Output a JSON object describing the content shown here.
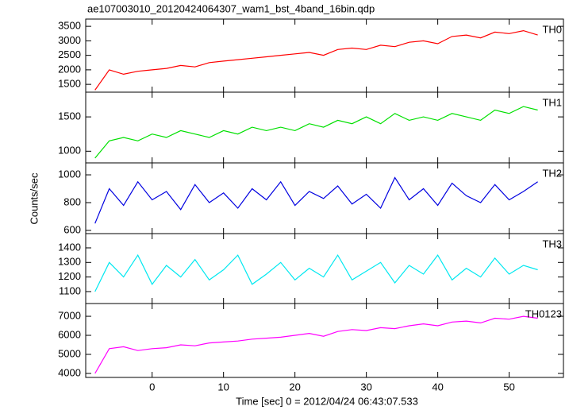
{
  "title": "ae107003010_20120424064307_wam1_bst_4band_16bin.qdp",
  "xlabel": "Time [sec] 0 = 2012/04/24 06:43:07.533",
  "ylabel": "Counts/sec",
  "xlim": [
    -9.3,
    57.6
  ],
  "xticks": [
    0,
    10,
    20,
    30,
    40,
    50
  ],
  "chart_data": [
    {
      "type": "line",
      "x": [
        -8,
        -6,
        -4,
        -2,
        0,
        2,
        4,
        6,
        8,
        10,
        12,
        14,
        16,
        18,
        20,
        22,
        24,
        26,
        28,
        30,
        32,
        34,
        36,
        38,
        40,
        42,
        44,
        46,
        48,
        50,
        52,
        54
      ],
      "series": [
        {
          "name": "TH0",
          "color": "#ff0000",
          "values": [
            1300,
            2000,
            1850,
            1950,
            2000,
            2050,
            2150,
            2100,
            2250,
            2300,
            2350,
            2400,
            2450,
            2500,
            2550,
            2600,
            2500,
            2700,
            2750,
            2700,
            2850,
            2800,
            2950,
            3000,
            2900,
            3150,
            3200,
            3100,
            3300,
            3250,
            3350,
            3200
          ]
        }
      ],
      "ylim": [
        1230,
        3750
      ],
      "yticks": [
        1500,
        2000,
        2500,
        3000,
        3500
      ]
    },
    {
      "type": "line",
      "x": [
        -8,
        -6,
        -4,
        -2,
        0,
        2,
        4,
        6,
        8,
        10,
        12,
        14,
        16,
        18,
        20,
        22,
        24,
        26,
        28,
        30,
        32,
        34,
        36,
        38,
        40,
        42,
        44,
        46,
        48,
        50,
        52,
        54
      ],
      "series": [
        {
          "name": "TH1",
          "color": "#00e000",
          "values": [
            900,
            1150,
            1200,
            1150,
            1250,
            1200,
            1300,
            1250,
            1200,
            1300,
            1250,
            1350,
            1300,
            1350,
            1300,
            1400,
            1350,
            1450,
            1400,
            1500,
            1400,
            1550,
            1450,
            1500,
            1450,
            1550,
            1500,
            1450,
            1600,
            1550,
            1650,
            1600
          ]
        }
      ],
      "ylim": [
        830,
        1860
      ],
      "yticks": [
        1000,
        1500
      ]
    },
    {
      "type": "line",
      "x": [
        -8,
        -6,
        -4,
        -2,
        0,
        2,
        4,
        6,
        8,
        10,
        12,
        14,
        16,
        18,
        20,
        22,
        24,
        26,
        28,
        30,
        32,
        34,
        36,
        38,
        40,
        42,
        44,
        46,
        48,
        50,
        52,
        54
      ],
      "series": [
        {
          "name": "TH2",
          "color": "#0000e0",
          "values": [
            650,
            900,
            780,
            950,
            820,
            880,
            750,
            930,
            800,
            870,
            760,
            900,
            820,
            950,
            780,
            880,
            830,
            920,
            790,
            860,
            760,
            980,
            820,
            900,
            780,
            940,
            850,
            800,
            930,
            820,
            880,
            950
          ]
        }
      ],
      "ylim": [
        577,
        1086
      ],
      "yticks": [
        600,
        800,
        1000
      ]
    },
    {
      "type": "line",
      "x": [
        -8,
        -6,
        -4,
        -2,
        0,
        2,
        4,
        6,
        8,
        10,
        12,
        14,
        16,
        18,
        20,
        22,
        24,
        26,
        28,
        30,
        32,
        34,
        36,
        38,
        40,
        42,
        44,
        46,
        48,
        50,
        52,
        54
      ],
      "series": [
        {
          "name": "TH3",
          "color": "#00e8f0",
          "values": [
            1100,
            1300,
            1200,
            1350,
            1150,
            1280,
            1200,
            1320,
            1180,
            1250,
            1350,
            1150,
            1220,
            1300,
            1180,
            1260,
            1200,
            1350,
            1180,
            1240,
            1300,
            1160,
            1280,
            1220,
            1350,
            1180,
            1260,
            1200,
            1330,
            1220,
            1280,
            1250
          ]
        }
      ],
      "ylim": [
        1018,
        1498
      ],
      "yticks": [
        1100,
        1200,
        1300,
        1400
      ]
    },
    {
      "type": "line",
      "x": [
        -8,
        -6,
        -4,
        -2,
        0,
        2,
        4,
        6,
        8,
        10,
        12,
        14,
        16,
        18,
        20,
        22,
        24,
        26,
        28,
        30,
        32,
        34,
        36,
        38,
        40,
        42,
        44,
        46,
        48,
        50,
        52,
        54
      ],
      "series": [
        {
          "name": "TH0123",
          "color": "#ff00ff",
          "values": [
            4000,
            5300,
            5400,
            5200,
            5300,
            5350,
            5500,
            5450,
            5600,
            5650,
            5700,
            5800,
            5850,
            5900,
            6000,
            6100,
            5950,
            6200,
            6300,
            6250,
            6400,
            6350,
            6500,
            6600,
            6500,
            6700,
            6750,
            6650,
            6900,
            6850,
            7000,
            6900
          ]
        }
      ],
      "ylim": [
        3790,
        7670
      ],
      "yticks": [
        4000,
        5000,
        6000,
        7000
      ]
    }
  ]
}
